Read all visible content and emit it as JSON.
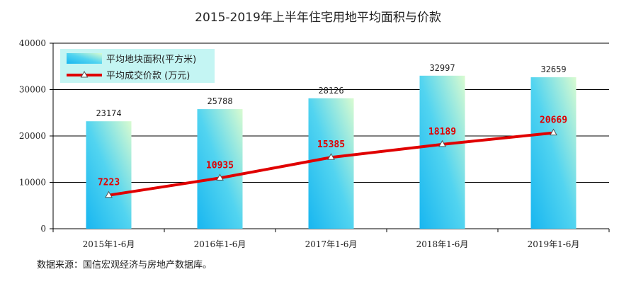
{
  "chart_data": {
    "type": "bar+line",
    "title": "2015-2019年上半年住宅用地平均面积与价款",
    "categories": [
      "2015年1-6月",
      "2016年1-6月",
      "2017年1-6月",
      "2018年1-6月",
      "2019年1-6月"
    ],
    "series": [
      {
        "name": "平均地块面积(平方米)",
        "kind": "bar",
        "values": [
          23174,
          25788,
          28126,
          32997,
          32659
        ],
        "color": "#29c3ee"
      },
      {
        "name": "平均成交价款 (万元)",
        "kind": "line",
        "values": [
          7223,
          10935,
          15385,
          18189,
          20669
        ],
        "color": "#e00000"
      }
    ],
    "yticks": [
      "0",
      "10000",
      "20000",
      "30000",
      "40000"
    ],
    "ylim": [
      0,
      40000
    ],
    "grid": true,
    "legend_position": "top-left"
  },
  "footer": {
    "source": "数据来源：国信宏观经济与房地产数据库。"
  }
}
